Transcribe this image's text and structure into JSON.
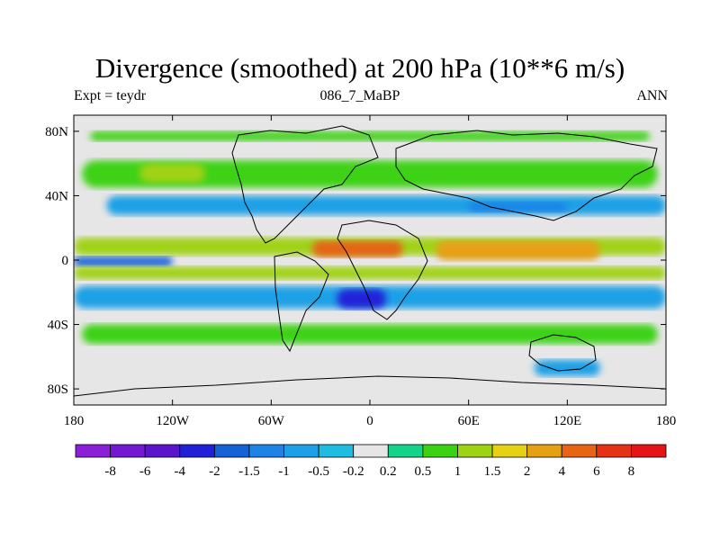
{
  "chart_data": {
    "type": "heatmap",
    "title": "Divergence (smoothed) at 200 hPa (10**6 m/s)",
    "subtitle_left": "Expt = teydr",
    "subtitle_center": "086_7_MaBP",
    "subtitle_right": "ANN",
    "x_ticks": [
      "180",
      "120W",
      "60W",
      "0",
      "60E",
      "120E",
      "180"
    ],
    "y_ticks": [
      "80N",
      "40N",
      "0",
      "40S",
      "80S"
    ],
    "xlim": [
      -180,
      180
    ],
    "ylim": [
      -90,
      90
    ],
    "colorbar": {
      "labels": [
        "-8",
        "-6",
        "-4",
        "-2",
        "-1.5",
        "-1",
        "-0.5",
        "-0.2",
        "0.2",
        "0.5",
        "1",
        "1.5",
        "2",
        "4",
        "6",
        "8"
      ],
      "colors": [
        "#8c1ed8",
        "#7418d2",
        "#5a14cc",
        "#2020d8",
        "#1462d6",
        "#1e82e6",
        "#1ea0e6",
        "#1ebce0",
        "#e6e6e6",
        "#14d288",
        "#3cd214",
        "#a0d214",
        "#e6d214",
        "#e6a014",
        "#e66414",
        "#e63214",
        "#e61414"
      ]
    },
    "field_background": "#e6e6e6",
    "features": [
      {
        "name": "north-polar-band",
        "lon": [
          -170,
          170
        ],
        "lat": [
          74,
          80
        ],
        "value": 0.5
      },
      {
        "name": "north-midlat-band",
        "lon": [
          -175,
          175
        ],
        "lat": [
          45,
          62
        ],
        "value": 0.5
      },
      {
        "name": "north-midlat-pos",
        "lon": [
          -140,
          -100
        ],
        "lat": [
          48,
          60
        ],
        "value": 1
      },
      {
        "name": "north-jet-neg",
        "lon": [
          -160,
          180
        ],
        "lat": [
          28,
          40
        ],
        "value": -1
      },
      {
        "name": "north-jet-strong-neg",
        "lon": [
          60,
          120
        ],
        "lat": [
          30,
          36
        ],
        "value": -1.5
      },
      {
        "name": "itcz-pos",
        "lon": [
          -180,
          180
        ],
        "lat": [
          3,
          14
        ],
        "value": 1
      },
      {
        "name": "itcz-core-africa",
        "lon": [
          -35,
          20
        ],
        "lat": [
          2,
          12
        ],
        "value": 4
      },
      {
        "name": "itcz-core-maritime",
        "lon": [
          40,
          140
        ],
        "lat": [
          0,
          12
        ],
        "value": 2
      },
      {
        "name": "equatorial-pacific-neg",
        "lon": [
          -180,
          -120
        ],
        "lat": [
          -4,
          2
        ],
        "value": -2
      },
      {
        "name": "south-pos",
        "lon": [
          -180,
          180
        ],
        "lat": [
          -12,
          -4
        ],
        "value": 1
      },
      {
        "name": "south-neg-band",
        "lon": [
          -180,
          180
        ],
        "lat": [
          -30,
          -16
        ],
        "value": -1
      },
      {
        "name": "south-atlantic-strong-neg",
        "lon": [
          -20,
          10
        ],
        "lat": [
          -30,
          -18
        ],
        "value": -4
      },
      {
        "name": "southern-midlat-pos",
        "lon": [
          -175,
          175
        ],
        "lat": [
          -52,
          -40
        ],
        "value": 0.5
      },
      {
        "name": "antarctic-neg",
        "lon": [
          100,
          140
        ],
        "lat": [
          -72,
          -62
        ],
        "value": -1
      }
    ]
  }
}
